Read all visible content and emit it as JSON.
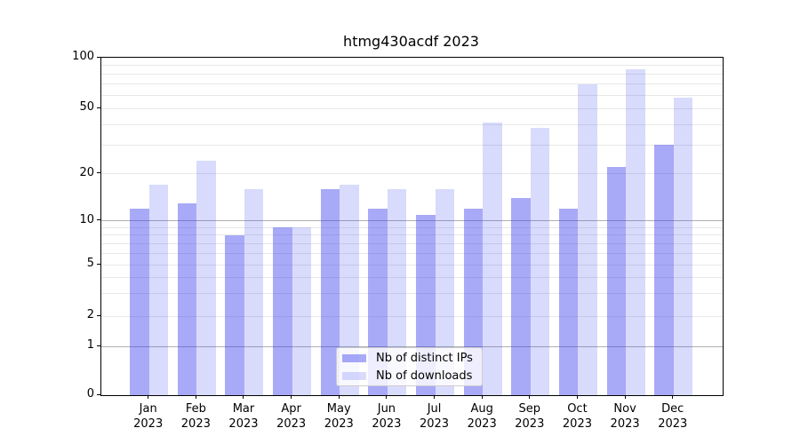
{
  "title": "htmg430acdf 2023",
  "chart_data": {
    "type": "bar",
    "title": "htmg430acdf 2023",
    "categories": [
      "Jan 2023",
      "Feb 2023",
      "Mar 2023",
      "Apr 2023",
      "May 2023",
      "Jun 2023",
      "Jul 2023",
      "Aug 2023",
      "Sep 2023",
      "Oct 2023",
      "Nov 2023",
      "Dec 2023"
    ],
    "months": [
      "Jan",
      "Feb",
      "Mar",
      "Apr",
      "May",
      "Jun",
      "Jul",
      "Aug",
      "Sep",
      "Oct",
      "Nov",
      "Dec"
    ],
    "year": "2023",
    "series": [
      {
        "name": "Nb of distinct IPs",
        "fill": "rgba(47,53,236,0.42)",
        "visible_hex": "#a8aaf7",
        "values": [
          12,
          13,
          8,
          9,
          16,
          12,
          11,
          12,
          14,
          12,
          22,
          30
        ]
      },
      {
        "name": "Nb of downloads",
        "fill": "rgba(47,53,236,0.18)",
        "visible_hex": "#dadcfb",
        "values": [
          17,
          24,
          16,
          9,
          17,
          16,
          16,
          41,
          38,
          70,
          85,
          58
        ]
      }
    ],
    "y_axis": {
      "scale": "symlog",
      "range": [
        0,
        100
      ],
      "ticks": [
        0,
        1,
        2,
        5,
        10,
        20,
        50,
        100
      ],
      "major_gridlines": [
        1,
        10
      ],
      "minor_gridlines": [
        2,
        3,
        4,
        5,
        6,
        7,
        8,
        9,
        20,
        30,
        40,
        50,
        60,
        70,
        80,
        90
      ]
    },
    "legend": {
      "position": "lower center",
      "entries": [
        "Nb of distinct IPs",
        "Nb of downloads"
      ]
    },
    "grid": true
  },
  "colors": {
    "background": "#ffffff",
    "axis": "#000000",
    "major_grid": "#b0b0b0",
    "minor_grid": "#e8e8e8",
    "bar_dark": "#a8aaf7",
    "bar_light": "#dadcfb"
  }
}
